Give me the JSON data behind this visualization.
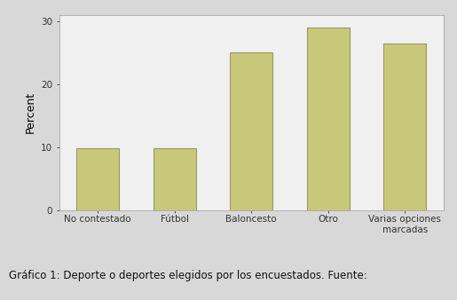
{
  "categories": [
    "No contestado",
    "Fútbol",
    "Baloncesto",
    "Otro",
    "Varias opciones\nmarcadas"
  ],
  "values": [
    9.8,
    9.8,
    25.0,
    29.0,
    26.5
  ],
  "bar_color": "#c8c87a",
  "bar_edge_color": "#999966",
  "ylabel": "Percent",
  "ylim": [
    0,
    31
  ],
  "yticks": [
    0,
    10,
    20,
    30
  ],
  "fig_bg_color": "#d8d8d8",
  "plot_bg_color": "#f0f0f0",
  "caption": "Gráfico 1: Deporte o deportes elegidos por los encuestados. Fuente:",
  "caption_fontsize": 8.5,
  "ylabel_fontsize": 9,
  "tick_fontsize": 7.5
}
